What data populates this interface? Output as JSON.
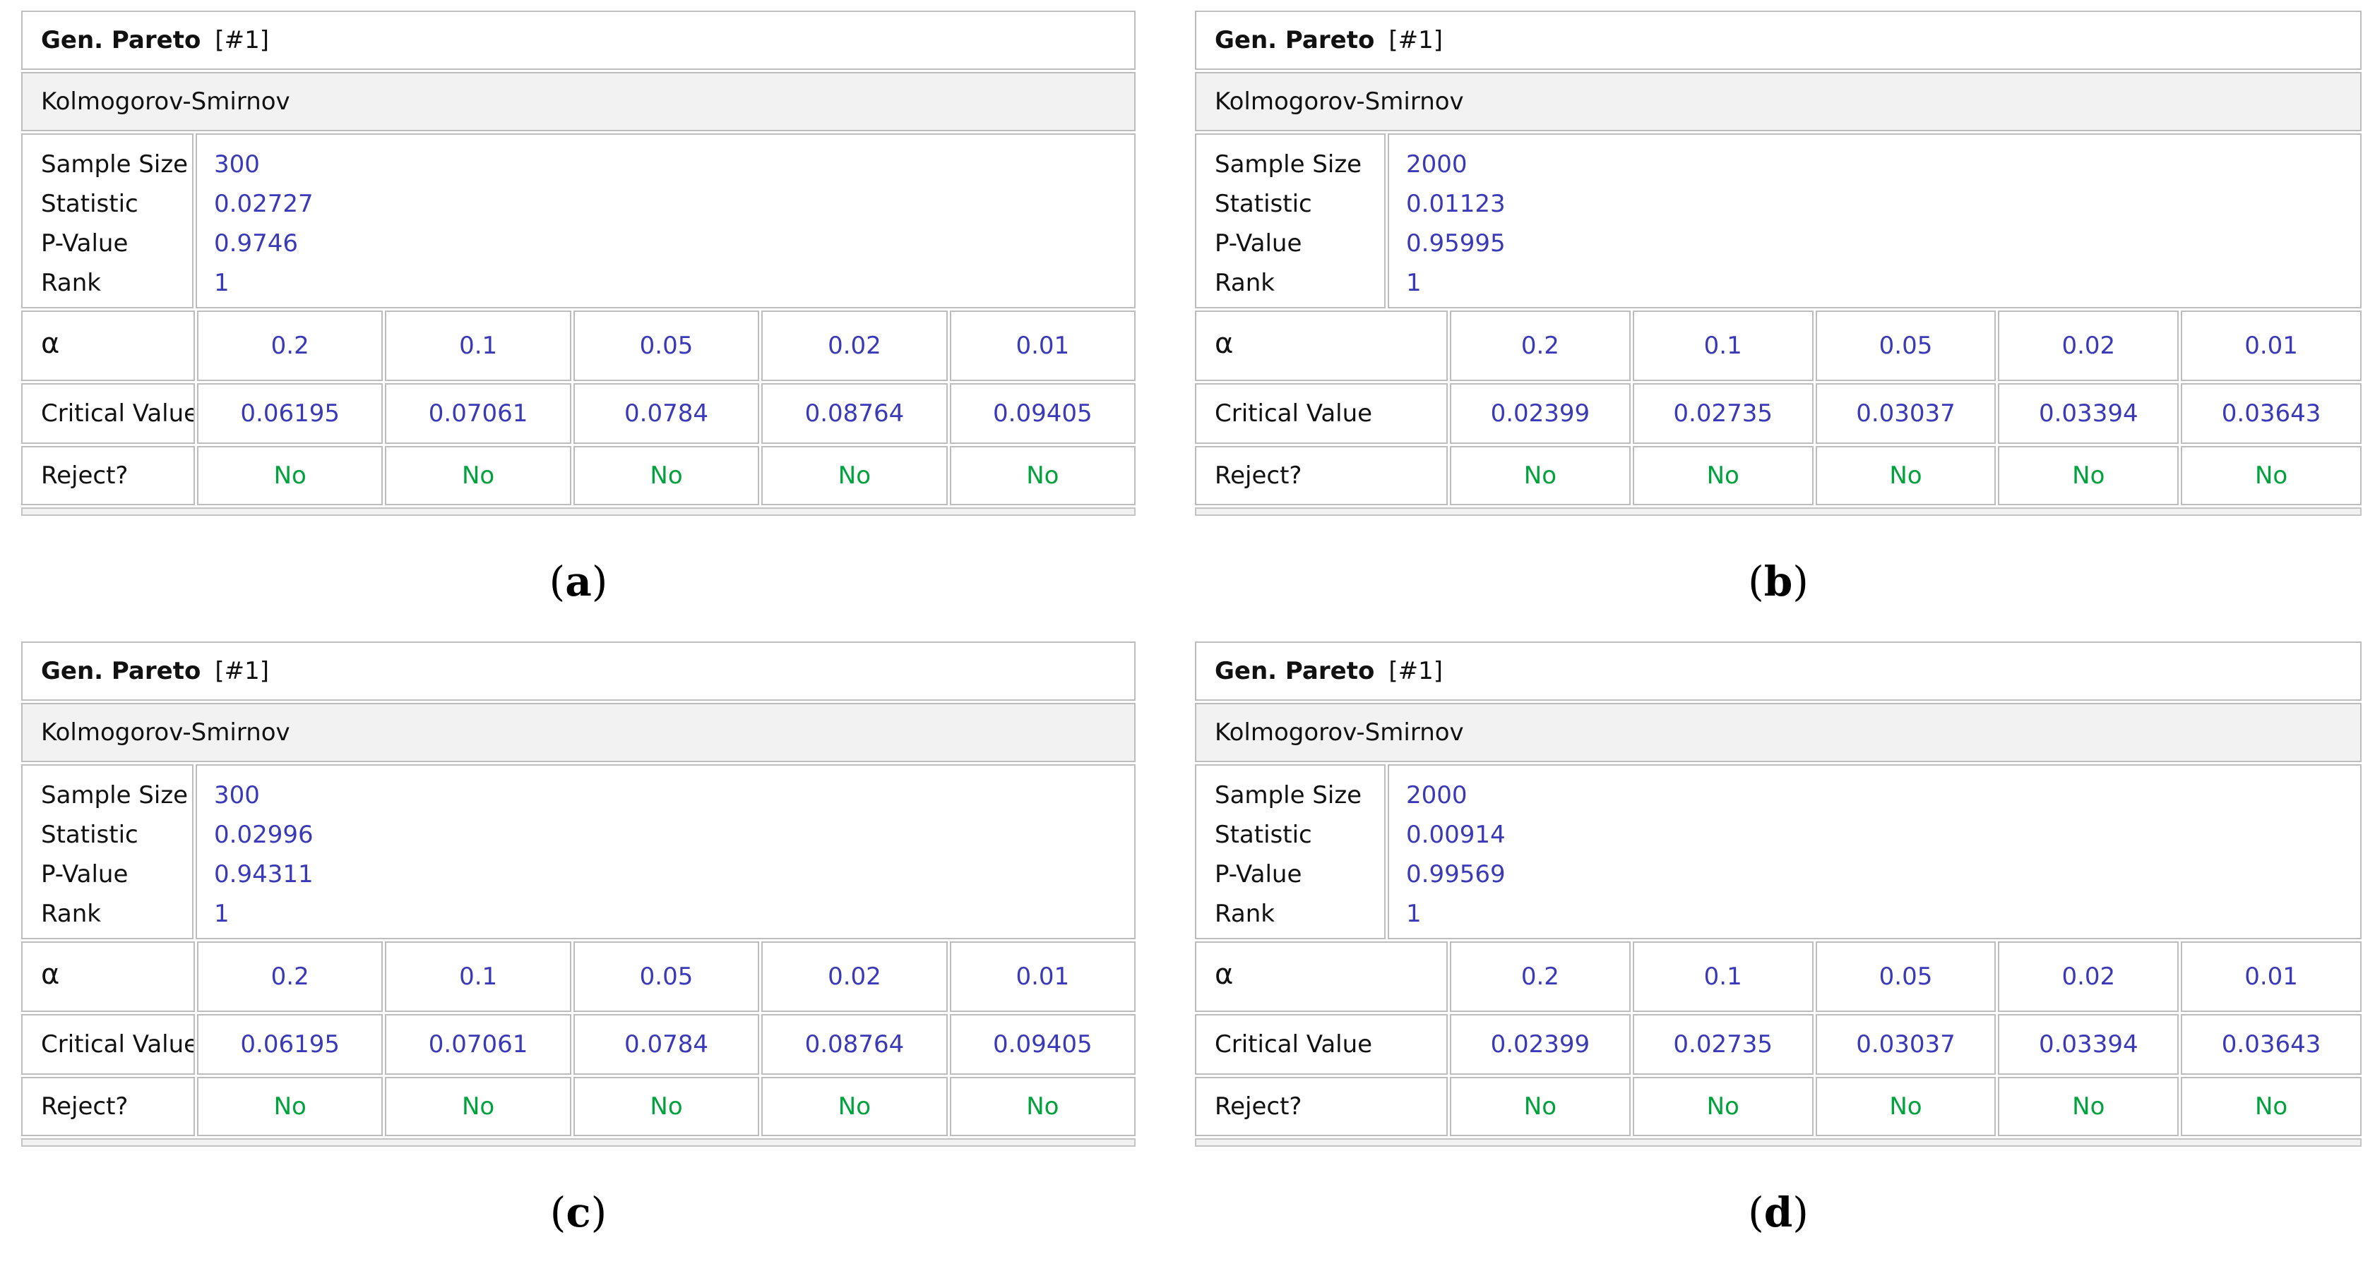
{
  "figure": {
    "description_colors": {
      "value_blue": "#3a3ab8",
      "reject_green": "#00a23c",
      "section_header_bg": "#f2f2f2",
      "grid_border_gray": "#bdbdbd"
    }
  },
  "labels": {
    "title_bold": "Gen. Pareto",
    "title_suffix": "[#1]",
    "test_name": "Kolmogorov-Smirnov",
    "sample_size": "Sample Size",
    "statistic": "Statistic",
    "p_value": "P-Value",
    "rank": "Rank",
    "alpha": "α",
    "critical_value": "Critical Value",
    "reject": "Reject?"
  },
  "alphas": [
    "0.2",
    "0.1",
    "0.05",
    "0.02",
    "0.01"
  ],
  "panels": [
    {
      "caption": "a",
      "sample_size": "300",
      "statistic": "0.02727",
      "p_value": "0.9746",
      "rank": "1",
      "critical_values": [
        "0.06195",
        "0.07061",
        "0.0784",
        "0.08764",
        "0.09405"
      ],
      "reject": [
        "No",
        "No",
        "No",
        "No",
        "No"
      ]
    },
    {
      "caption": "b",
      "sample_size": "2000",
      "statistic": "0.01123",
      "p_value": "0.95995",
      "rank": "1",
      "critical_values": [
        "0.02399",
        "0.02735",
        "0.03037",
        "0.03394",
        "0.03643"
      ],
      "reject": [
        "No",
        "No",
        "No",
        "No",
        "No"
      ]
    },
    {
      "caption": "c",
      "sample_size": "300",
      "statistic": "0.02996",
      "p_value": "0.94311",
      "rank": "1",
      "critical_values": [
        "0.06195",
        "0.07061",
        "0.0784",
        "0.08764",
        "0.09405"
      ],
      "reject": [
        "No",
        "No",
        "No",
        "No",
        "No"
      ]
    },
    {
      "caption": "d",
      "sample_size": "2000",
      "statistic": "0.00914",
      "p_value": "0.99569",
      "rank": "1",
      "critical_values": [
        "0.02399",
        "0.02735",
        "0.03037",
        "0.03394",
        "0.03643"
      ],
      "reject": [
        "No",
        "No",
        "No",
        "No",
        "No"
      ]
    }
  ]
}
